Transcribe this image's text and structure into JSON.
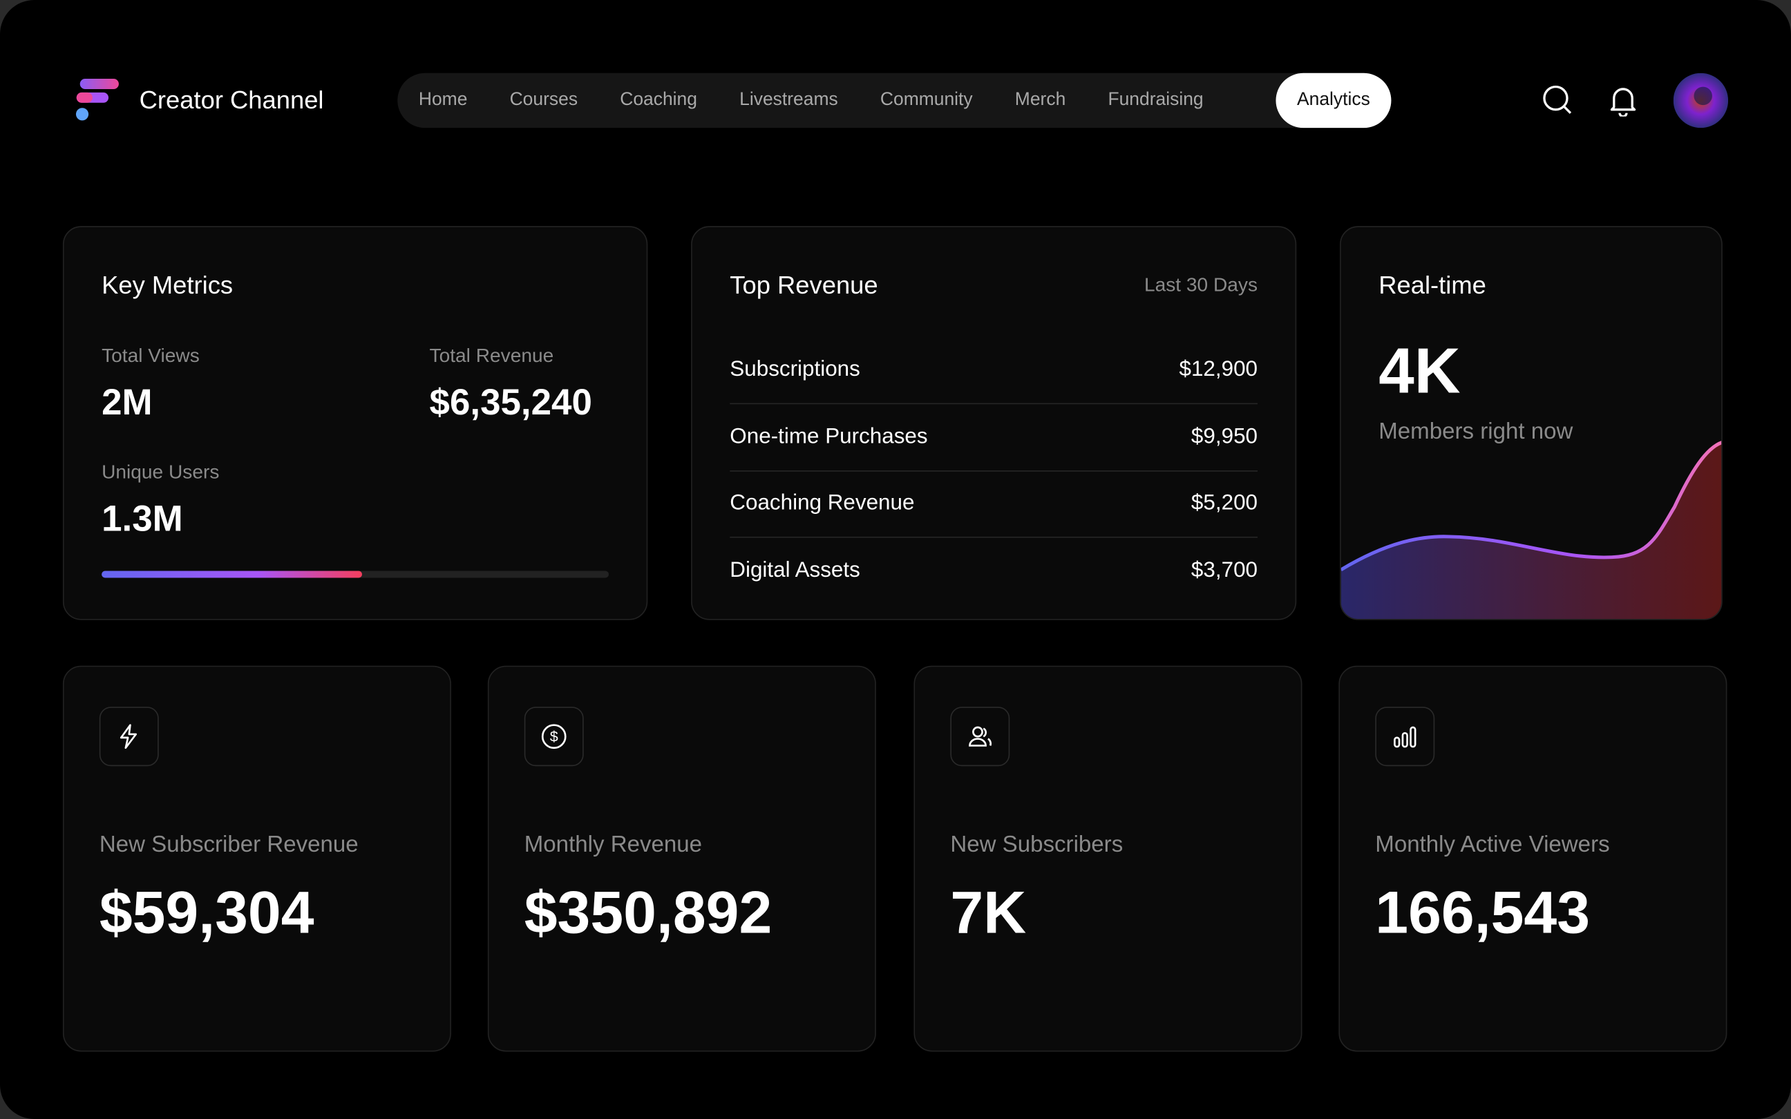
{
  "header": {
    "brand": "Creator Channel",
    "nav": [
      "Home",
      "Courses",
      "Coaching",
      "Livestreams",
      "Community",
      "Merch",
      "Fundraising",
      "Analytics"
    ],
    "active_nav_index": 7
  },
  "key_metrics": {
    "title": "Key Metrics",
    "items": [
      {
        "label": "Total Views",
        "value": "2M"
      },
      {
        "label": "Total Revenue",
        "value": "$6,35,240"
      },
      {
        "label": "Unique Users",
        "value": "1.3M"
      }
    ]
  },
  "top_revenue": {
    "title": "Top Revenue",
    "period": "Last 30 Days",
    "rows": [
      {
        "label": "Subscriptions",
        "value": "$12,900"
      },
      {
        "label": "One-time Purchases",
        "value": "$9,950"
      },
      {
        "label": "Coaching Revenue",
        "value": "$5,200"
      },
      {
        "label": "Digital Assets",
        "value": "$3,700"
      }
    ]
  },
  "realtime": {
    "title": "Real-time",
    "value": "4K",
    "caption": "Members right now"
  },
  "stats": [
    {
      "label": "New Subscriber Revenue",
      "value": "$59,304"
    },
    {
      "label": "Monthly Revenue",
      "value": "$350,892"
    },
    {
      "label": "New Subscribers",
      "value": "7K"
    },
    {
      "label": "Monthly Active Viewers",
      "value": "166,543"
    }
  ]
}
